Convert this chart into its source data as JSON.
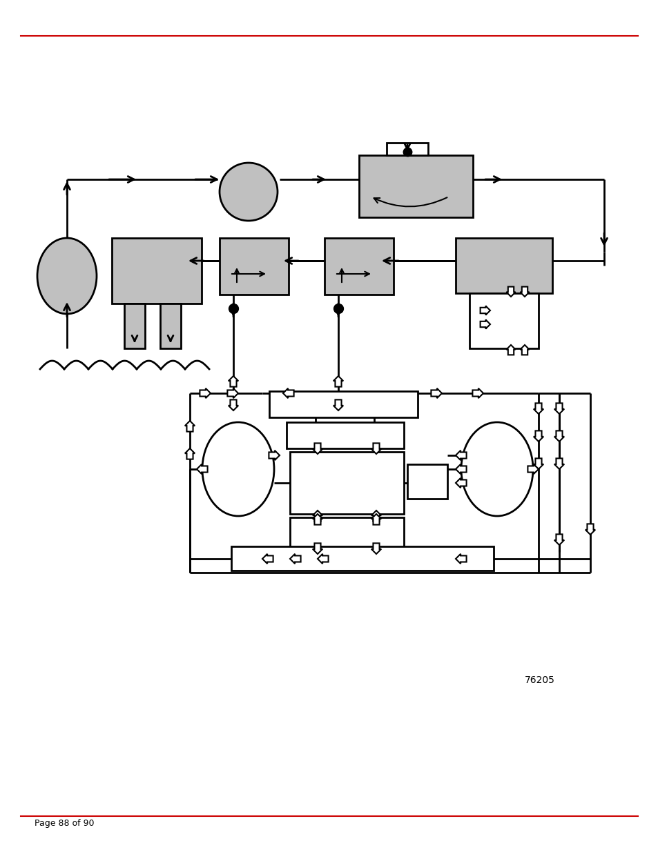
{
  "bg_color": "#ffffff",
  "line_color": "#000000",
  "red_line_color": "#cc0000",
  "gray_fill": "#c0c0c0",
  "page_text": "Page 88 of 90",
  "ref_number": "76205",
  "lw_main": 2.0,
  "lw_thin": 1.5,
  "arrow_size": 13
}
